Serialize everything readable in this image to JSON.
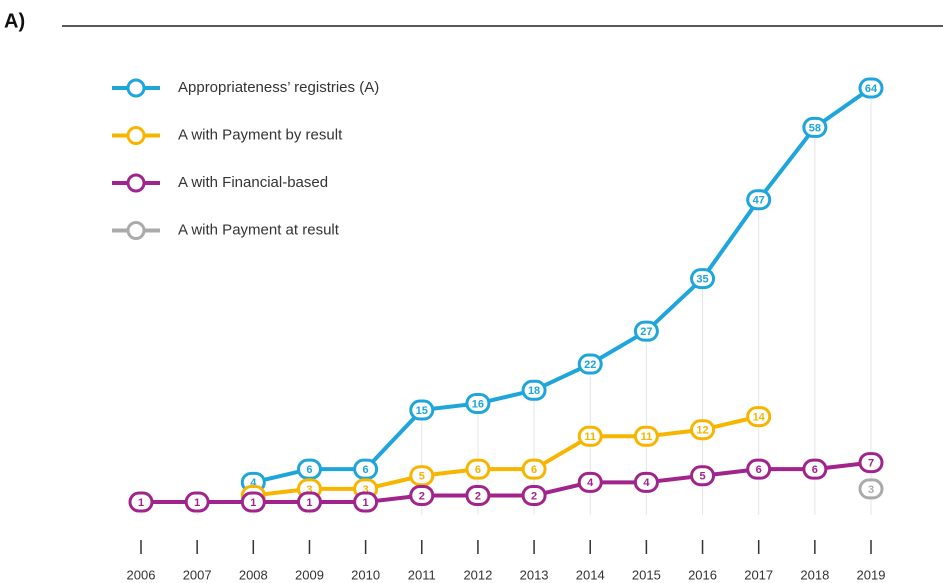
{
  "chart_data": {
    "type": "line",
    "title": "A)",
    "categories": [
      "2006",
      "2007",
      "2008",
      "2009",
      "2010",
      "2011",
      "2012",
      "2013",
      "2014",
      "2015",
      "2016",
      "2017",
      "2018",
      "2019"
    ],
    "series": [
      {
        "name": "Appropriateness’ registries (A)",
        "color": "#1ea6dc",
        "values": [
          null,
          null,
          4,
          6,
          6,
          15,
          16,
          18,
          22,
          27,
          35,
          47,
          58,
          64
        ]
      },
      {
        "name": "A with Payment by result",
        "color": "#f7b500",
        "values": [
          null,
          null,
          2,
          3,
          3,
          5,
          6,
          6,
          11,
          11,
          12,
          14,
          null,
          null
        ]
      },
      {
        "name": "A with Financial-based",
        "color": "#a1248c",
        "values": [
          1,
          1,
          1,
          1,
          1,
          2,
          2,
          2,
          4,
          4,
          5,
          6,
          6,
          7
        ]
      },
      {
        "name": "A with Payment at result",
        "color": "#aaaaaa",
        "values": [
          null,
          null,
          null,
          null,
          null,
          null,
          null,
          null,
          null,
          null,
          null,
          null,
          null,
          3
        ]
      }
    ],
    "ylim": [
      0,
      64
    ],
    "legend": "upper left"
  }
}
